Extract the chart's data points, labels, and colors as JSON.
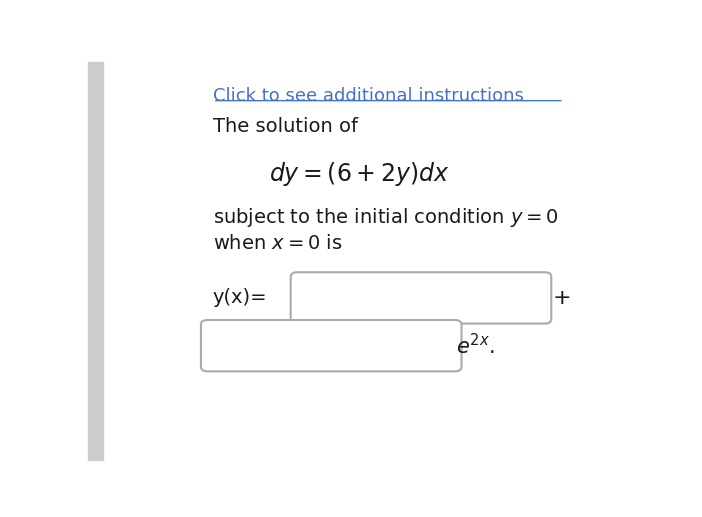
{
  "background_color": "#ffffff",
  "link_text": "Click to see additional instructions",
  "link_color": "#4472c4",
  "line1": "The solution of",
  "line3": "subject to the initial condition $y = 0$",
  "line4": "when $x = 0$ is",
  "yx_label": "y(x)=",
  "plus_sign": "+",
  "left_bar_color": "#cccccc"
}
